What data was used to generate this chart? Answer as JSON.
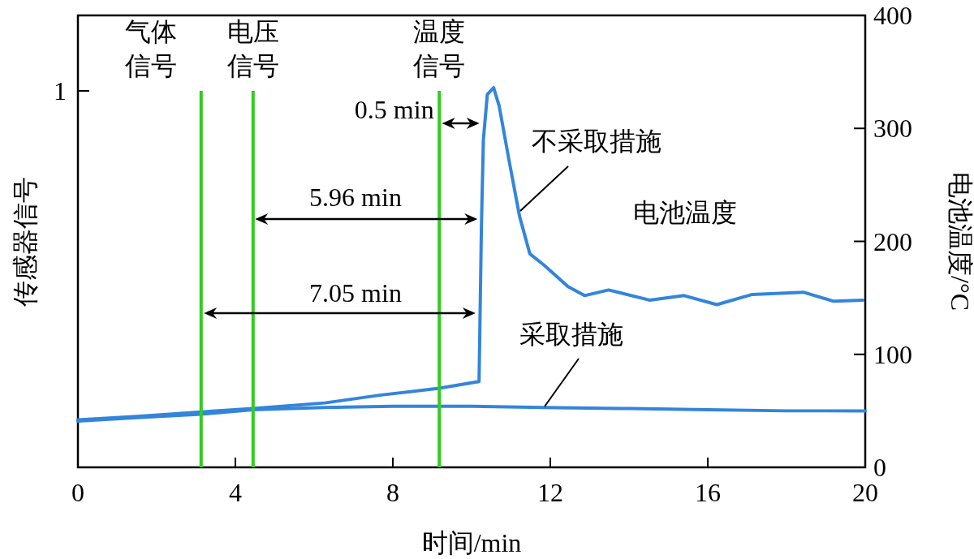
{
  "chart_data": {
    "type": "line",
    "xlabel": "时间/min",
    "ylabel": "传感器信号",
    "y2label": "电池温度/°C",
    "xlim": [
      0,
      20
    ],
    "xticks": [
      0,
      4,
      8,
      12,
      16,
      20
    ],
    "ref_lines": [
      {
        "axis": "x",
        "value": 3.13,
        "label": "气体信号",
        "color": "#33cc22"
      },
      {
        "axis": "x",
        "value": 4.45,
        "label": "电压信号",
        "color": "#33cc22"
      },
      {
        "axis": "x",
        "value": 9.18,
        "label": "温度信号",
        "color": "#33cc22"
      }
    ],
    "y2lim": [
      0,
      400
    ],
    "y2ticks": [
      0,
      100,
      200,
      300,
      400
    ],
    "grid": false,
    "line_style": "solid",
    "marker": "none",
    "series": [
      {
        "name": "不采取措施",
        "axis": "y2",
        "color": "#3385db",
        "x": [
          0,
          1.5,
          3.13,
          4.45,
          6.27,
          7.7,
          9.18,
          10.19,
          10.25,
          10.3,
          10.4,
          10.56,
          10.7,
          10.95,
          11.22,
          11.48,
          11.84,
          12.45,
          12.87,
          13.48,
          14.52,
          15.4,
          16.23,
          17.13,
          18.43,
          19.2,
          19.94
        ],
        "values": [
          42,
          45,
          49,
          52,
          57,
          64,
          70,
          76,
          213,
          290,
          330,
          336,
          320,
          272,
          222,
          189,
          179,
          160,
          152,
          157,
          148,
          152,
          144,
          153,
          155,
          147,
          148
        ]
      },
      {
        "name": "采取措施",
        "axis": "y2",
        "color": "#3385db",
        "x": [
          0,
          1.5,
          3.13,
          4.45,
          6.27,
          8,
          10,
          11.8,
          14,
          16,
          18,
          20
        ],
        "values": [
          41,
          44,
          47,
          51,
          53,
          54,
          54,
          53,
          52,
          51,
          50,
          50
        ]
      }
    ],
    "annotations": [
      "0.5 min",
      "5.96 min",
      "7.05 min",
      "电池温度",
      "1"
    ]
  }
}
